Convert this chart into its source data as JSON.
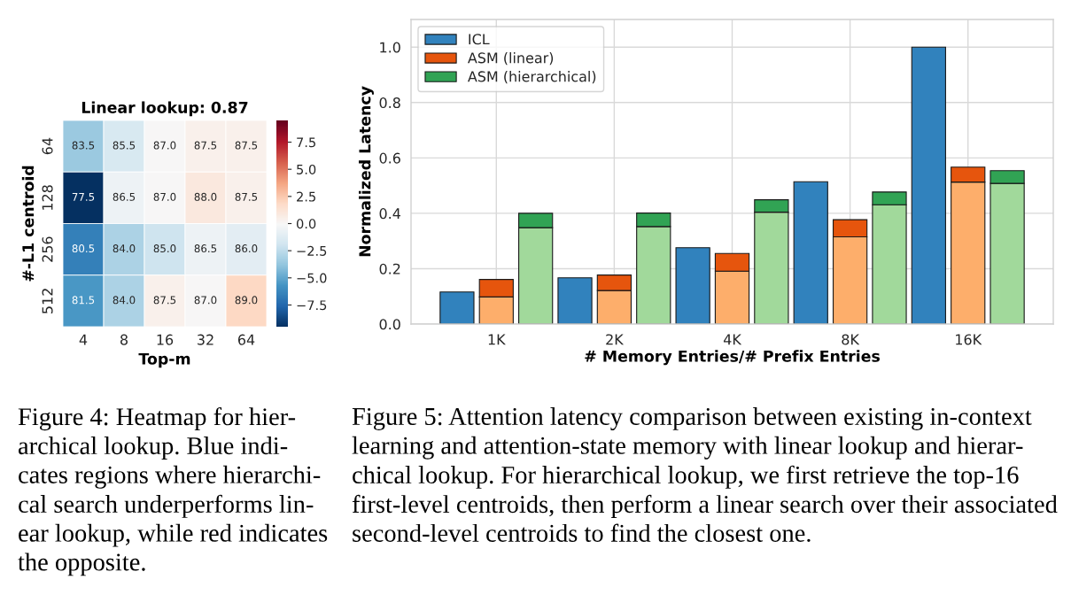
{
  "chart_data": [
    {
      "type": "heatmap",
      "title": "Linear lookup: 0.87",
      "xlabel": "Top-m",
      "ylabel": "#-L1 centroid",
      "categories": [
        "4",
        "8",
        "16",
        "32",
        "64"
      ],
      "y_categories": [
        "64",
        "128",
        "256",
        "512"
      ],
      "cells": [
        [
          -3.5,
          -1.5,
          0.0,
          0.5,
          0.5
        ],
        [
          -9.5,
          -0.5,
          0.0,
          1.0,
          0.5
        ],
        [
          -6.5,
          -3.0,
          -2.0,
          -0.5,
          -1.0
        ],
        [
          -5.5,
          -3.0,
          0.5,
          0.0,
          2.0
        ]
      ],
      "colors": [
        "#053061",
        "#2166ac",
        "#4393c3",
        "#92c5de",
        "#d1e5f0",
        "#f7f7f7",
        "#fddbc7",
        "#f4a582",
        "#d6604d",
        "#b2182b",
        "#67001f"
      ],
      "clim": [
        -9.5,
        9.5
      ],
      "cticks": [
        {
          "value": -7.5,
          "label": "−7.5"
        },
        {
          "value": -5,
          "label": "−5.0"
        },
        {
          "value": -2.5,
          "label": "−2.5"
        },
        {
          "value": 0,
          "label": "0.0"
        },
        2.5,
        {
          "value": 5,
          "label": "5.0"
        },
        7.5
      ],
      "annotations": [
        "83.5",
        "85.5",
        "87.0",
        "87.5",
        "87.5",
        "77.5",
        "86.5",
        "87.0",
        "88.0",
        "87.5",
        "80.5",
        "84.0",
        "85.0",
        "86.5",
        "86.0",
        "81.5",
        "84.0",
        "87.5",
        "87.0",
        "89.0",
        "Figure 4: Heatmap for hier-\narchical lookup. Blue indi-\ncates regions where hierarchi-\ncal search underperforms lin-\near lookup, while red indicates\nthe opposite."
      ]
    },
    {
      "type": "bar",
      "xlabel": "# Memory Entries/# Prefix Entries",
      "ylabel": "Normalized Latency",
      "categories": [
        null,
        "1K",
        null,
        null,
        "2K",
        null,
        null,
        "4K",
        null,
        null,
        "8K",
        null,
        null,
        "16K",
        null
      ],
      "stacked": true,
      "series": [
        {
          "name": "ICL",
          "color": "#3182bd",
          "values": [
            0.116,
            null,
            null,
            0.167,
            null,
            null,
            0.276,
            null,
            null,
            0.514,
            null,
            null,
            1.0,
            null,
            null
          ]
        },
        {
          "color": "#fdae6b",
          "values": [
            null,
            0.098,
            null,
            null,
            0.121,
            null,
            null,
            0.191,
            null,
            null,
            0.315,
            null,
            null,
            0.513,
            null
          ]
        },
        {
          "name": "ASM (linear)",
          "color": "#e6550d",
          "values": [
            null,
            0.063,
            null,
            null,
            0.056,
            null,
            null,
            0.064,
            null,
            null,
            0.062,
            null,
            null,
            0.054,
            null
          ]
        },
        {
          "color": "#a1d99b",
          "values": [
            null,
            null,
            0.348,
            null,
            null,
            0.352,
            null,
            null,
            0.404,
            null,
            null,
            0.431,
            null,
            null,
            0.508
          ]
        },
        {
          "name": "ASM (hierarchical)",
          "color": "#31a354",
          "values": [
            null,
            null,
            0.052,
            null,
            null,
            0.049,
            null,
            null,
            0.045,
            null,
            null,
            0.046,
            null,
            null,
            0.046
          ]
        }
      ],
      "ylim": [
        0,
        1.1
      ],
      "yticks": [
        {
          "value": 0,
          "label": "0.0"
        },
        0.2,
        0.4,
        0.6,
        0.8,
        {
          "value": 1,
          "label": "1.0"
        }
      ],
      "grid": true,
      "legend": "top left",
      "annotations": [
        "Figure 5: Attention latency comparison between existing in-context\nlearning and attention-state memory with linear lookup and hierar-\nchical lookup. For hierarchical lookup, we first retrieve the top-16\nfirst-level centroids, then perform a linear search over their associated\nsecond-level centroids to find the closest one."
      ]
    }
  ]
}
